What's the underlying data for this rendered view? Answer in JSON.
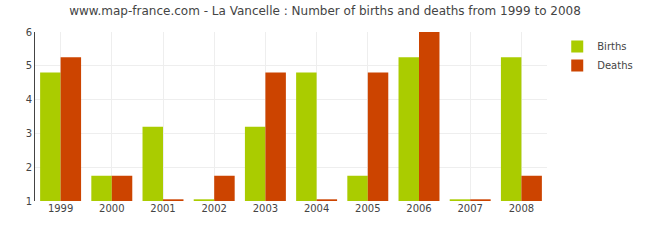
{
  "chart_data": {
    "type": "bar",
    "title": "www.map-france.com - La Vancelle : Number of births and deaths from 1999 to 2008",
    "categories": [
      "1999",
      "2000",
      "2001",
      "2002",
      "2003",
      "2004",
      "2005",
      "2006",
      "2007",
      "2008"
    ],
    "series": [
      {
        "name": "Births",
        "color": "#aacc00",
        "values": [
          4.8,
          1.75,
          3.2,
          1.05,
          3.2,
          4.8,
          1.75,
          5.25,
          1.05,
          5.25
        ]
      },
      {
        "name": "Deaths",
        "color": "#cc4400",
        "values": [
          5.25,
          1.75,
          1.05,
          1.75,
          4.8,
          1.05,
          4.8,
          6.0,
          1.05,
          1.75
        ]
      }
    ],
    "ylim": [
      1,
      6
    ],
    "yticks": [
      1,
      2,
      3,
      4,
      5,
      6
    ],
    "grid": true,
    "legend": "upper right"
  }
}
